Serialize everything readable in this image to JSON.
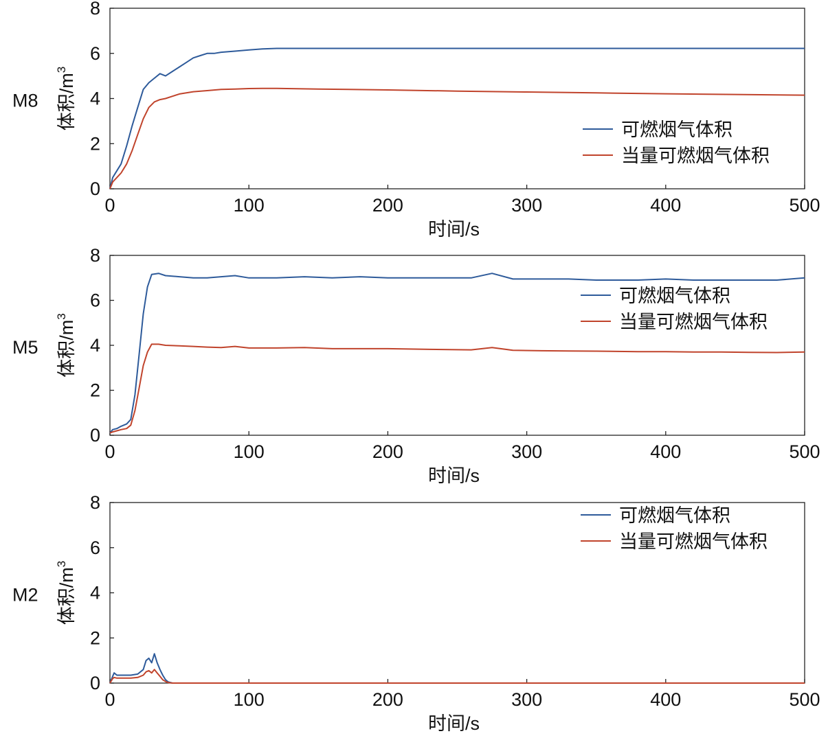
{
  "chart_data": [
    {
      "type": "line",
      "panel_label": "M8",
      "xlabel": "时间/s",
      "ylabel": "体积/m",
      "ylabel_superscript": "3",
      "xlim": [
        0,
        500
      ],
      "ylim": [
        0,
        8
      ],
      "xticks": [
        "0",
        "100",
        "200",
        "300",
        "400",
        "500"
      ],
      "yticks": [
        "0",
        "2",
        "4",
        "6",
        "8"
      ],
      "legend_position": "center-right",
      "series": [
        {
          "name": "可燃烟气体积",
          "color": "#2d5a9a",
          "x": [
            0,
            2,
            5,
            8,
            12,
            16,
            20,
            24,
            28,
            32,
            36,
            40,
            45,
            50,
            55,
            60,
            65,
            70,
            75,
            80,
            90,
            100,
            110,
            120,
            130,
            150,
            200,
            250,
            300,
            350,
            400,
            450,
            500
          ],
          "y": [
            0,
            0.5,
            0.8,
            1.1,
            1.9,
            2.8,
            3.6,
            4.4,
            4.7,
            4.9,
            5.1,
            5.0,
            5.2,
            5.4,
            5.6,
            5.8,
            5.9,
            6.0,
            6.0,
            6.05,
            6.1,
            6.15,
            6.2,
            6.22,
            6.22,
            6.22,
            6.22,
            6.22,
            6.22,
            6.22,
            6.22,
            6.22,
            6.22
          ]
        },
        {
          "name": "当量可燃烟气体积",
          "color": "#c0432b",
          "x": [
            0,
            2,
            5,
            8,
            12,
            16,
            20,
            24,
            28,
            32,
            36,
            40,
            45,
            50,
            60,
            70,
            80,
            90,
            100,
            110,
            120,
            150,
            200,
            250,
            300,
            350,
            400,
            450,
            500
          ],
          "y": [
            0,
            0.3,
            0.5,
            0.7,
            1.1,
            1.7,
            2.4,
            3.1,
            3.6,
            3.85,
            3.95,
            4.0,
            4.1,
            4.2,
            4.3,
            4.35,
            4.4,
            4.42,
            4.44,
            4.45,
            4.45,
            4.42,
            4.38,
            4.33,
            4.29,
            4.25,
            4.21,
            4.18,
            4.15
          ]
        }
      ]
    },
    {
      "type": "line",
      "panel_label": "M5",
      "xlabel": "时间/s",
      "ylabel": "体积/m",
      "ylabel_superscript": "3",
      "xlim": [
        0,
        500
      ],
      "ylim": [
        0,
        8
      ],
      "xticks": [
        "0",
        "100",
        "200",
        "300",
        "400",
        "500"
      ],
      "yticks": [
        "0",
        "2",
        "4",
        "6",
        "8"
      ],
      "legend_position": "upper-right",
      "series": [
        {
          "name": "可燃烟气体积",
          "color": "#2d5a9a",
          "x": [
            0,
            2,
            5,
            8,
            12,
            15,
            18,
            21,
            24,
            27,
            30,
            35,
            40,
            50,
            60,
            70,
            80,
            90,
            100,
            120,
            140,
            160,
            180,
            200,
            230,
            260,
            275,
            290,
            310,
            330,
            350,
            380,
            400,
            420,
            440,
            460,
            480,
            500
          ],
          "y": [
            0.1,
            0.25,
            0.3,
            0.4,
            0.5,
            0.7,
            1.8,
            3.6,
            5.4,
            6.6,
            7.15,
            7.2,
            7.1,
            7.05,
            7.0,
            7.0,
            7.05,
            7.1,
            7.0,
            7.0,
            7.05,
            7.0,
            7.05,
            7.0,
            7.0,
            7.0,
            7.2,
            6.95,
            6.95,
            6.95,
            6.9,
            6.9,
            6.95,
            6.9,
            6.9,
            6.9,
            6.9,
            7.0
          ]
        },
        {
          "name": "当量可燃烟气体积",
          "color": "#c0432b",
          "x": [
            0,
            2,
            5,
            8,
            12,
            15,
            18,
            21,
            24,
            27,
            30,
            35,
            40,
            50,
            60,
            70,
            80,
            90,
            100,
            120,
            140,
            160,
            180,
            200,
            230,
            260,
            275,
            290,
            310,
            330,
            350,
            380,
            400,
            420,
            440,
            460,
            480,
            500
          ],
          "y": [
            0.1,
            0.15,
            0.2,
            0.25,
            0.3,
            0.45,
            1.1,
            2.1,
            3.1,
            3.7,
            4.05,
            4.05,
            4.0,
            3.98,
            3.95,
            3.92,
            3.9,
            3.95,
            3.88,
            3.88,
            3.9,
            3.85,
            3.85,
            3.85,
            3.82,
            3.8,
            3.9,
            3.78,
            3.76,
            3.75,
            3.74,
            3.72,
            3.72,
            3.7,
            3.7,
            3.69,
            3.68,
            3.7
          ]
        }
      ]
    },
    {
      "type": "line",
      "panel_label": "M2",
      "xlabel": "时间/s",
      "ylabel": "体积/m",
      "ylabel_superscript": "3",
      "xlim": [
        0,
        500
      ],
      "ylim": [
        0,
        8
      ],
      "xticks": [
        "0",
        "100",
        "200",
        "300",
        "400",
        "500"
      ],
      "yticks": [
        "0",
        "2",
        "4",
        "6",
        "8"
      ],
      "legend_position": "upper-right",
      "series": [
        {
          "name": "可燃烟气体积",
          "color": "#2d5a9a",
          "x": [
            0,
            2,
            3,
            5,
            10,
            15,
            20,
            24,
            26,
            28,
            30,
            32,
            34,
            36,
            38,
            40,
            42,
            45,
            50,
            100,
            200,
            300,
            400,
            500
          ],
          "y": [
            0,
            0.3,
            0.45,
            0.35,
            0.35,
            0.35,
            0.4,
            0.6,
            1.0,
            1.1,
            0.9,
            1.3,
            0.9,
            0.6,
            0.35,
            0.15,
            0.05,
            0,
            0,
            0,
            0,
            0,
            0,
            0
          ]
        },
        {
          "name": "当量可燃烟气体积",
          "color": "#c0432b",
          "x": [
            0,
            2,
            3,
            5,
            10,
            15,
            20,
            24,
            26,
            28,
            30,
            32,
            34,
            36,
            38,
            40,
            42,
            45,
            50,
            100,
            200,
            300,
            400,
            500
          ],
          "y": [
            0,
            0.2,
            0.25,
            0.22,
            0.22,
            0.22,
            0.25,
            0.35,
            0.5,
            0.55,
            0.45,
            0.6,
            0.45,
            0.3,
            0.15,
            0.07,
            0.02,
            0,
            0,
            0,
            0,
            0,
            0,
            0
          ]
        }
      ]
    }
  ]
}
